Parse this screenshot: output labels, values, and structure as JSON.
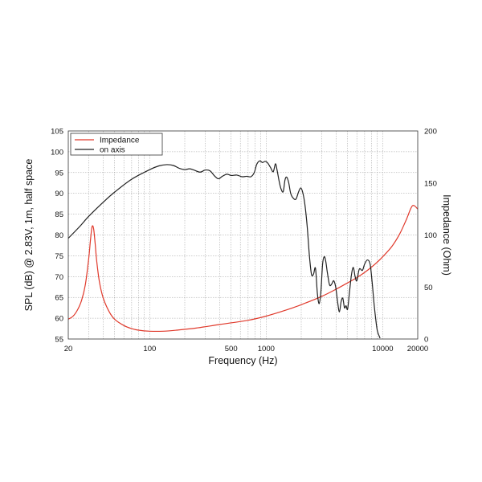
{
  "chart_data": {
    "type": "line",
    "title": "",
    "xlabel": "Frequency (Hz)",
    "ylabel_left": "SPL (dB) @ 2.83V, 1m, half space",
    "ylabel_right": "Impedance (Ohm)",
    "x_scale": "log",
    "xlim": [
      20,
      20000
    ],
    "ylim_left": [
      55,
      105
    ],
    "ylim_right": [
      0,
      200
    ],
    "grid": true,
    "legend_position": "top-left",
    "x_tick_labels": [
      "20",
      "100",
      "500",
      "1000",
      "10000",
      "20000"
    ],
    "x_tick_values": [
      20,
      100,
      500,
      1000,
      10000,
      20000
    ],
    "y_left_ticks": [
      55,
      60,
      65,
      70,
      75,
      80,
      85,
      90,
      95,
      100,
      105
    ],
    "y_right_ticks": [
      0,
      50,
      100,
      150,
      200
    ],
    "series": [
      {
        "name": "Impedance",
        "axis": "right",
        "color": "#e0392b",
        "points": [
          [
            20,
            19
          ],
          [
            22,
            22
          ],
          [
            24,
            28
          ],
          [
            26,
            37
          ],
          [
            28,
            52
          ],
          [
            30,
            78
          ],
          [
            31,
            95
          ],
          [
            32,
            108
          ],
          [
            33,
            106
          ],
          [
            34,
            92
          ],
          [
            35,
            76
          ],
          [
            37,
            55
          ],
          [
            40,
            39
          ],
          [
            45,
            26
          ],
          [
            50,
            19
          ],
          [
            60,
            13
          ],
          [
            70,
            10
          ],
          [
            80,
            8.5
          ],
          [
            100,
            7.5
          ],
          [
            130,
            7.5
          ],
          [
            170,
            8.5
          ],
          [
            250,
            10.5
          ],
          [
            400,
            14
          ],
          [
            700,
            18
          ],
          [
            1000,
            22
          ],
          [
            1500,
            28
          ],
          [
            2000,
            33
          ],
          [
            3000,
            41
          ],
          [
            4000,
            48
          ],
          [
            5000,
            54
          ],
          [
            6000,
            59
          ],
          [
            7000,
            64
          ],
          [
            8000,
            69
          ],
          [
            9000,
            74
          ],
          [
            10000,
            79
          ],
          [
            12000,
            89
          ],
          [
            14000,
            101
          ],
          [
            16000,
            115
          ],
          [
            18000,
            128
          ],
          [
            20000,
            125
          ]
        ]
      },
      {
        "name": "on axis",
        "axis": "left",
        "color": "#222222",
        "points": [
          [
            20,
            79.2
          ],
          [
            25,
            82.0
          ],
          [
            30,
            84.5
          ],
          [
            40,
            87.9
          ],
          [
            50,
            90.3
          ],
          [
            70,
            93.4
          ],
          [
            100,
            95.7
          ],
          [
            120,
            96.6
          ],
          [
            140,
            96.9
          ],
          [
            160,
            96.7
          ],
          [
            180,
            96.0
          ],
          [
            200,
            95.7
          ],
          [
            220,
            95.9
          ],
          [
            240,
            95.6
          ],
          [
            270,
            95.1
          ],
          [
            300,
            95.6
          ],
          [
            330,
            95.4
          ],
          [
            360,
            94.2
          ],
          [
            390,
            93.5
          ],
          [
            420,
            94.1
          ],
          [
            460,
            94.6
          ],
          [
            500,
            94.3
          ],
          [
            560,
            94.4
          ],
          [
            620,
            94.0
          ],
          [
            680,
            94.1
          ],
          [
            740,
            94.0
          ],
          [
            790,
            95.0
          ],
          [
            830,
            97.0
          ],
          [
            880,
            97.8
          ],
          [
            930,
            97.4
          ],
          [
            980,
            97.7
          ],
          [
            1030,
            97.3
          ],
          [
            1090,
            96.2
          ],
          [
            1150,
            95.2
          ],
          [
            1200,
            97.1
          ],
          [
            1240,
            95.6
          ],
          [
            1290,
            93.0
          ],
          [
            1340,
            91.1
          ],
          [
            1400,
            90.4
          ],
          [
            1450,
            93.2
          ],
          [
            1500,
            93.9
          ],
          [
            1560,
            92.6
          ],
          [
            1620,
            90.1
          ],
          [
            1700,
            88.9
          ],
          [
            1800,
            88.6
          ],
          [
            1900,
            90.4
          ],
          [
            1980,
            91.3
          ],
          [
            2060,
            90.2
          ],
          [
            2150,
            87.3
          ],
          [
            2250,
            82.0
          ],
          [
            2350,
            75.0
          ],
          [
            2450,
            70.5
          ],
          [
            2550,
            70.6
          ],
          [
            2650,
            72.0
          ],
          [
            2750,
            66.0
          ],
          [
            2850,
            63.5
          ],
          [
            2950,
            66.5
          ],
          [
            3050,
            73.0
          ],
          [
            3150,
            74.8
          ],
          [
            3250,
            73.6
          ],
          [
            3350,
            71.0
          ],
          [
            3500,
            68.0
          ],
          [
            3650,
            68.2
          ],
          [
            3800,
            69.0
          ],
          [
            3950,
            67.5
          ],
          [
            4100,
            64.0
          ],
          [
            4250,
            61.5
          ],
          [
            4400,
            64.0
          ],
          [
            4550,
            64.8
          ],
          [
            4700,
            62.5
          ],
          [
            4850,
            63.0
          ],
          [
            5000,
            62.2
          ],
          [
            5200,
            66.5
          ],
          [
            5400,
            70.5
          ],
          [
            5600,
            72.2
          ],
          [
            5800,
            70.0
          ],
          [
            6000,
            69.0
          ],
          [
            6300,
            71.8
          ],
          [
            6700,
            71.5
          ],
          [
            7000,
            73.0
          ],
          [
            7400,
            74.0
          ],
          [
            7800,
            73.0
          ],
          [
            8100,
            69.0
          ],
          [
            8400,
            64.0
          ],
          [
            8700,
            60.0
          ],
          [
            9000,
            57.0
          ],
          [
            9500,
            55.2
          ]
        ]
      }
    ]
  }
}
